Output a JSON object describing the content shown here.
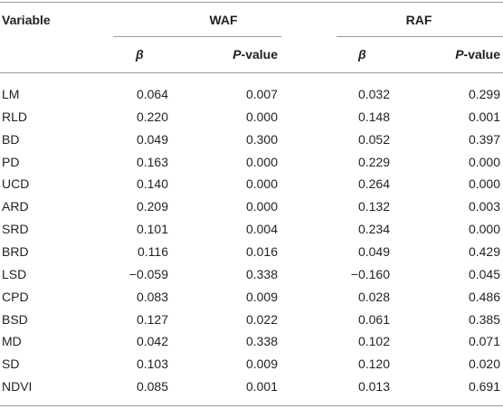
{
  "table": {
    "header": {
      "variable": "Variable",
      "groups": [
        "WAF",
        "RAF"
      ]
    },
    "subheader": [
      {
        "beta": "β",
        "p_italic": "P",
        "p_rest": "-value"
      },
      {
        "beta": "β",
        "p_italic": "P",
        "p_rest": "-value"
      }
    ],
    "rows": [
      [
        "LM",
        "0.064",
        "0.007",
        "0.032",
        "0.299"
      ],
      [
        "RLD",
        "0.220",
        "0.000",
        "0.148",
        "0.001"
      ],
      [
        "BD",
        "0.049",
        "0.300",
        "0.052",
        "0.397"
      ],
      [
        "PD",
        "0.163",
        "0.000",
        "0.229",
        "0.000"
      ],
      [
        "UCD",
        "0.140",
        "0.000",
        "0.264",
        "0.000"
      ],
      [
        "ARD",
        "0.209",
        "0.000",
        "0.132",
        "0.003"
      ],
      [
        "SRD",
        "0.101",
        "0.004",
        "0.234",
        "0.000"
      ],
      [
        "BRD",
        "0.116",
        "0.016",
        "0.049",
        "0.429"
      ],
      [
        "LSD",
        "−0.059",
        "0.338",
        "−0.160",
        "0.045"
      ],
      [
        "CPD",
        "0.083",
        "0.009",
        "0.028",
        "0.486"
      ],
      [
        "BSD",
        "0.127",
        "0.022",
        "0.061",
        "0.385"
      ],
      [
        "MD",
        "0.042",
        "0.338",
        "0.102",
        "0.071"
      ],
      [
        "SD",
        "0.103",
        "0.009",
        "0.120",
        "0.020"
      ],
      [
        "NDVI",
        "0.085",
        "0.001",
        "0.013",
        "0.691"
      ]
    ]
  }
}
